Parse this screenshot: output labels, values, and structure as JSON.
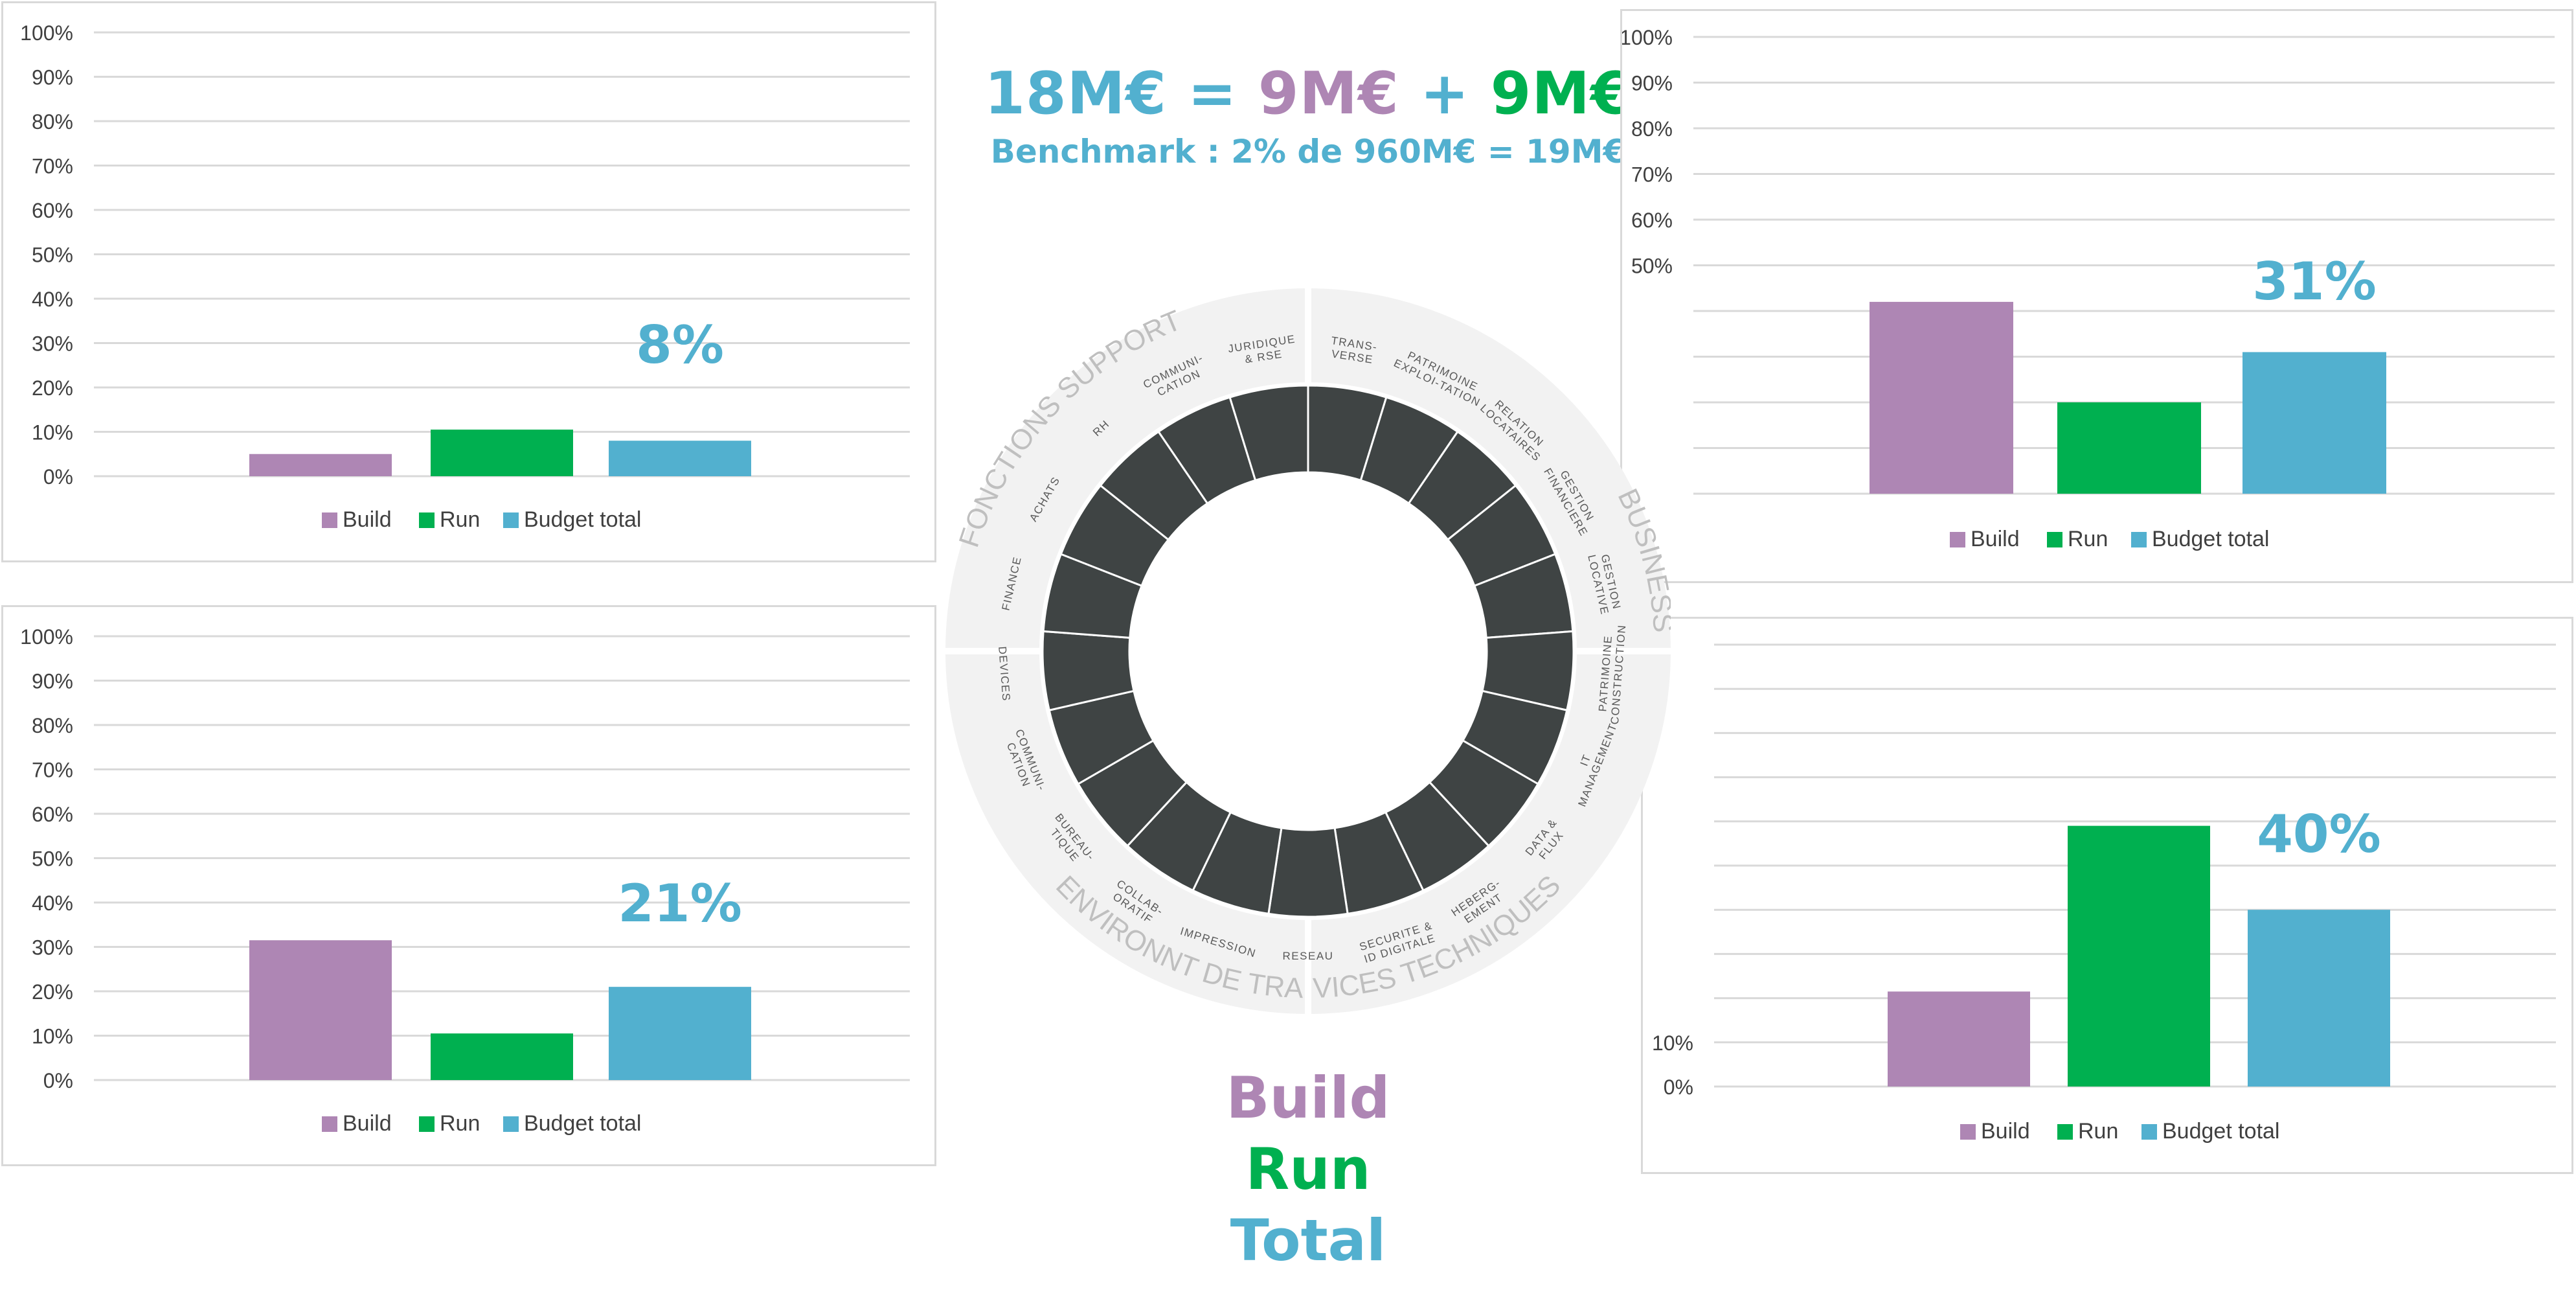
{
  "colors": {
    "build": "#ae86b4",
    "run": "#00b050",
    "total": "#52b0cf",
    "segment": "#3f4444",
    "ring": "#f2f2f2",
    "ringText": "#595959",
    "sectionText": "#bfbfbf",
    "grid": "#d9d9d9",
    "axisText": "#404040"
  },
  "headline": {
    "total": "18M€",
    "eq": " = ",
    "build": "9M€",
    "plus": " + ",
    "run": "9M€",
    "benchmark": "Benchmark : 2% de 960M€ = 19M€"
  },
  "legend_words": {
    "build": "Build",
    "run": "Run",
    "total": "Total"
  },
  "wheel": {
    "sections": [
      "FONCTIONS SUPPORT",
      "BUSINESS",
      "SERVICES TECHNIQUES",
      "ENVIRONNT DE TRAVAIL"
    ],
    "labels": [
      "TRANS-|VERSE",
      "PATRIMOINE|EXPLOI-TATION",
      "RELATION|LOCATAIRES",
      "GESTION|FINANCIERE",
      "GESTION|LOCATIVE",
      "PATRIMOINE|CONSTRUCTION",
      "IT|MANAGEMENT",
      "DATA &|FLUX",
      "HEBERG-|EMENT",
      "SECURITE &|ID DIGITALE",
      "RESEAU",
      "IMPRESSION",
      "COLLAB-|ORATIF",
      "BUREAU-|TIQUE",
      "COMMUNI-|CATION",
      "DEVICES",
      "FINANCE",
      "ACHATS",
      "RH",
      "COMMUNI-|CATION",
      "JURIDIQUE|& RSE"
    ]
  },
  "chart_data": [
    {
      "type": "bar",
      "categories": [
        "Build",
        "Run",
        "Budget total"
      ],
      "values": [
        5,
        10.5,
        8
      ],
      "annotation": "8%",
      "ylim": [
        0,
        100
      ],
      "yticks": [
        "0%",
        "10%",
        "20%",
        "30%",
        "40%",
        "50%",
        "60%",
        "70%",
        "80%",
        "90%",
        "100%"
      ],
      "legend": [
        "Build",
        "Run",
        "Budget total"
      ],
      "legend_position": "bottom"
    },
    {
      "type": "bar",
      "categories": [
        "Build",
        "Run",
        "Budget total"
      ],
      "values": [
        42,
        20,
        31
      ],
      "annotation": "31%",
      "ylim": [
        0,
        100
      ],
      "yticks": [
        "",
        "",
        "",
        "",
        "",
        "50%",
        "60%",
        "70%",
        "80%",
        "90%",
        "100%"
      ],
      "legend": [
        "Build",
        "Run",
        "Budget total"
      ],
      "legend_position": "bottom"
    },
    {
      "type": "bar",
      "categories": [
        "Build",
        "Run",
        "Budget total"
      ],
      "values": [
        31.5,
        10.5,
        21
      ],
      "annotation": "21%",
      "ylim": [
        0,
        100
      ],
      "yticks": [
        "0%",
        "10%",
        "20%",
        "30%",
        "40%",
        "50%",
        "60%",
        "70%",
        "80%",
        "90%",
        "100%"
      ],
      "legend": [
        "Build",
        "Run",
        "Budget total"
      ],
      "legend_position": "bottom"
    },
    {
      "type": "bar",
      "categories": [
        "Build",
        "Run",
        "Budget total"
      ],
      "values": [
        21.5,
        59,
        40
      ],
      "annotation": "40%",
      "ylim": [
        0,
        100
      ],
      "yticks": [
        "0%",
        "10%",
        "",
        "",
        "",
        "",
        "",
        "",
        "",
        "",
        ""
      ],
      "legend": [
        "Build",
        "Run",
        "Budget total"
      ],
      "legend_position": "bottom"
    }
  ]
}
